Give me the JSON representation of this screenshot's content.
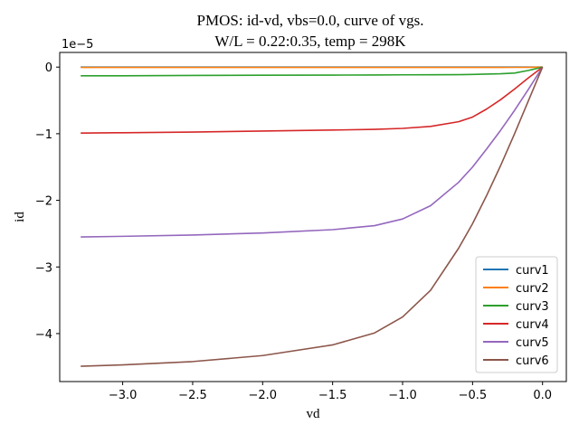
{
  "chart_data": {
    "type": "line",
    "title": [
      "PMOS: id-vd, vbs=0.0, curve of vgs.",
      "W/L = 0.22:0.35, temp = 298K"
    ],
    "xlabel": "vd",
    "ylabel": "id",
    "y_offset_text": "1e−5",
    "xlim": [
      -3.45,
      0.17
    ],
    "ylim": [
      -4.72,
      0.22
    ],
    "x_ticks": [
      -3.0,
      -2.5,
      -2.0,
      -1.5,
      -1.0,
      -0.5,
      0.0
    ],
    "x_tick_labels": [
      "−3.0",
      "−2.5",
      "−2.0",
      "−1.5",
      "−1.0",
      "−0.5",
      "0.0"
    ],
    "y_ticks": [
      0,
      -1,
      -2,
      -3,
      -4
    ],
    "y_tick_labels": [
      "0",
      "−1",
      "−2",
      "−3",
      "−4"
    ],
    "grid": false,
    "legend_position": "lower-right",
    "x": [
      -3.3,
      -3.0,
      -2.5,
      -2.0,
      -1.5,
      -1.2,
      -1.0,
      -0.8,
      -0.6,
      -0.5,
      -0.4,
      -0.3,
      -0.2,
      -0.1,
      0.0
    ],
    "series": [
      {
        "name": "curv1",
        "color": "#1f77b4",
        "values": [
          0,
          0,
          0,
          0,
          0,
          0,
          0,
          0,
          0,
          0,
          0,
          0,
          0,
          0,
          0
        ]
      },
      {
        "name": "curv2",
        "color": "#ff7f0e",
        "values": [
          -0.005,
          -0.005,
          -0.005,
          -0.005,
          -0.005,
          -0.005,
          -0.005,
          -0.005,
          -0.005,
          -0.005,
          -0.005,
          -0.005,
          -0.004,
          -0.003,
          0
        ]
      },
      {
        "name": "curv3",
        "color": "#2ca02c",
        "values": [
          -0.13,
          -0.13,
          -0.125,
          -0.122,
          -0.12,
          -0.118,
          -0.116,
          -0.115,
          -0.113,
          -0.11,
          -0.105,
          -0.1,
          -0.09,
          -0.05,
          0
        ]
      },
      {
        "name": "curv4",
        "color": "#d62728",
        "values": [
          -0.99,
          -0.985,
          -0.975,
          -0.96,
          -0.945,
          -0.935,
          -0.92,
          -0.89,
          -0.82,
          -0.75,
          -0.63,
          -0.49,
          -0.33,
          -0.16,
          0
        ]
      },
      {
        "name": "curv5",
        "color": "#9467bd",
        "values": [
          -2.55,
          -2.54,
          -2.52,
          -2.49,
          -2.44,
          -2.38,
          -2.28,
          -2.08,
          -1.73,
          -1.5,
          -1.23,
          -0.95,
          -0.65,
          -0.33,
          0
        ]
      },
      {
        "name": "curv6",
        "color": "#8c564b",
        "values": [
          -4.49,
          -4.47,
          -4.42,
          -4.33,
          -4.17,
          -3.99,
          -3.75,
          -3.35,
          -2.72,
          -2.35,
          -1.93,
          -1.48,
          -1.0,
          -0.5,
          0
        ]
      }
    ]
  }
}
